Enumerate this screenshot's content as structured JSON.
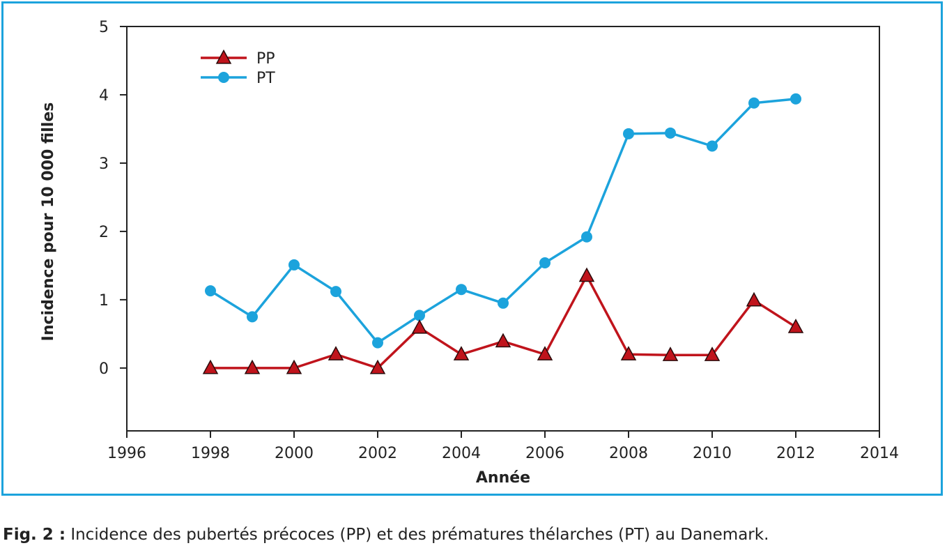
{
  "caption": {
    "label": "Fig. 2 :",
    "text": " Incidence des pubertés précoces (PP) et des prématures thélarches (PT) au Danemark."
  },
  "colors": {
    "frame": "#1ca3dc",
    "pp": "#c0141c",
    "pt": "#1ca3dc",
    "axis": "#222222"
  },
  "chart_data": {
    "type": "line",
    "xlabel": "Année",
    "ylabel": "Incidence pour 10 000 filles",
    "xlim": [
      1996,
      2014
    ],
    "ylim": [
      -0.92,
      5
    ],
    "xticks": [
      1996,
      1998,
      2000,
      2002,
      2004,
      2006,
      2008,
      2010,
      2012,
      2014
    ],
    "yticks": [
      0,
      1,
      2,
      3,
      4,
      5
    ],
    "grid": false,
    "legend_position": "top-left",
    "series": [
      {
        "name": "PP",
        "marker": "triangle",
        "color": "#c0141c",
        "x": [
          1998,
          1999,
          2000,
          2001,
          2002,
          2003,
          2004,
          2005,
          2006,
          2007,
          2008,
          2009,
          2010,
          2011,
          2012
        ],
        "y": [
          0,
          0,
          0,
          0.2,
          0,
          0.59,
          0.2,
          0.39,
          0.2,
          1.35,
          0.2,
          0.19,
          0.19,
          0.99,
          0.6
        ]
      },
      {
        "name": "PT",
        "marker": "circle",
        "color": "#1ca3dc",
        "x": [
          1998,
          1999,
          2000,
          2001,
          2002,
          2003,
          2004,
          2005,
          2006,
          2007,
          2008,
          2009,
          2010,
          2011,
          2012
        ],
        "y": [
          1.13,
          0.75,
          1.51,
          1.12,
          0.37,
          0.77,
          1.15,
          0.95,
          1.54,
          1.92,
          3.43,
          3.44,
          3.25,
          3.88,
          3.94
        ]
      }
    ]
  }
}
